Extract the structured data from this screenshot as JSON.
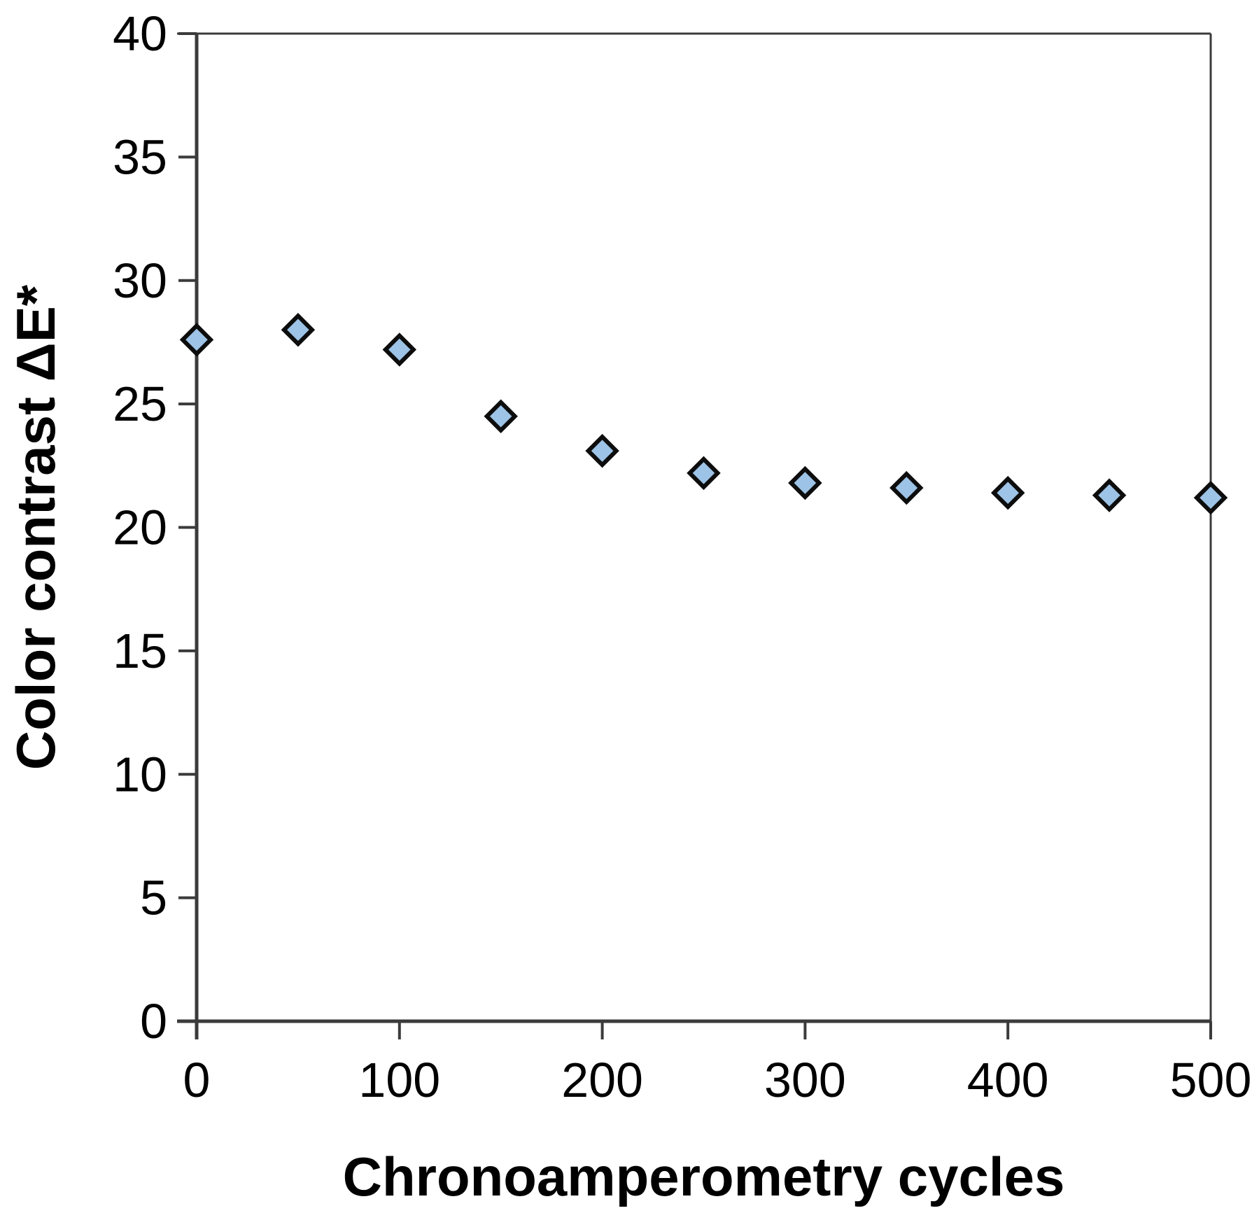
{
  "chart_data": {
    "type": "scatter",
    "title": "",
    "xlabel": "Chronoamperometry cycles",
    "ylabel": "Color contrast ΔE*",
    "x": [
      0,
      50,
      100,
      150,
      200,
      250,
      300,
      350,
      400,
      450,
      500
    ],
    "y": [
      27.6,
      28.0,
      27.2,
      24.5,
      23.1,
      22.2,
      21.8,
      21.6,
      21.4,
      21.3,
      21.2
    ],
    "xlim": [
      0,
      500
    ],
    "ylim": [
      0,
      40
    ],
    "xticks": [
      0,
      100,
      200,
      300,
      400,
      500
    ],
    "yticks": [
      0,
      5,
      10,
      15,
      20,
      25,
      30,
      35,
      40
    ],
    "grid": false,
    "legend": null,
    "marker": {
      "shape": "diamond",
      "fill": "#9DC3E6",
      "stroke": "#0D0D0D"
    }
  },
  "colors": {
    "axis_line": "#3B3B3B",
    "text": "#000000",
    "background": "#FFFFFF"
  }
}
